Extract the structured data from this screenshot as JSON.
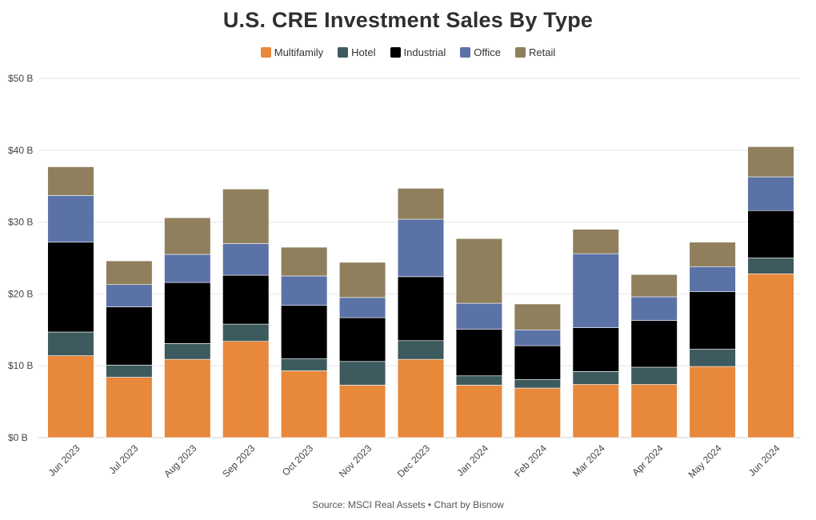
{
  "chart_data": {
    "type": "bar",
    "stacked": true,
    "title": "U.S. CRE Investment Sales By Type",
    "source": "Source: MSCI Real Assets • Chart by Bisnow",
    "categories": [
      "Jun 2023",
      "Jul 2023",
      "Aug 2023",
      "Sep 2023",
      "Oct 2023",
      "Nov 2023",
      "Dec 2023",
      "Jan 2024",
      "Feb 2024",
      "Mar 2024",
      "Apr 2024",
      "May 2024",
      "Jun 2024"
    ],
    "y_ticks": [
      "$0 B",
      "$10 B",
      "$20 B",
      "$30 B",
      "$40 B",
      "$50 B"
    ],
    "ylim": [
      0,
      50
    ],
    "series": [
      {
        "name": "Multifamily",
        "color": "#E8883A",
        "values": [
          11.4,
          8.4,
          10.9,
          13.4,
          9.3,
          7.3,
          10.9,
          7.3,
          6.9,
          7.4,
          7.4,
          9.9,
          22.8
        ]
      },
      {
        "name": "Hotel",
        "color": "#3D5A5E",
        "values": [
          3.3,
          1.7,
          2.2,
          2.4,
          1.7,
          3.3,
          2.6,
          1.3,
          1.2,
          1.8,
          2.4,
          2.4,
          2.2
        ]
      },
      {
        "name": "Industrial",
        "color": "#000000",
        "values": [
          12.5,
          8.1,
          8.5,
          6.8,
          7.4,
          6.1,
          8.9,
          6.5,
          4.7,
          6.1,
          6.5,
          8.0,
          6.6
        ]
      },
      {
        "name": "Office",
        "color": "#5B72A7",
        "values": [
          6.5,
          3.1,
          3.9,
          4.4,
          4.1,
          2.8,
          8.0,
          3.6,
          2.2,
          10.3,
          3.3,
          3.5,
          4.7
        ]
      },
      {
        "name": "Retail",
        "color": "#8F7F5C",
        "values": [
          4.0,
          3.3,
          5.1,
          7.6,
          4.0,
          4.9,
          4.3,
          9.0,
          3.6,
          3.4,
          3.1,
          3.4,
          4.2
        ]
      }
    ]
  }
}
